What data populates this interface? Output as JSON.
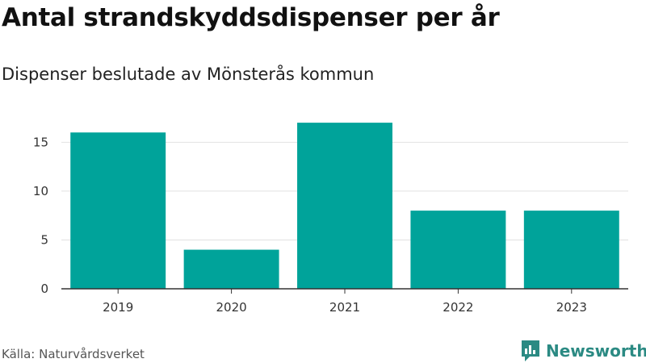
{
  "chart_data": {
    "type": "bar",
    "title": "Antal strandskyddsdispenser per år",
    "subtitle": "Dispenser beslutade av Mönsterås kommun",
    "categories": [
      "2019",
      "2020",
      "2021",
      "2022",
      "2023"
    ],
    "values": [
      16,
      4,
      17,
      8,
      8
    ],
    "xlabel": "",
    "ylabel": "",
    "ylim": [
      0,
      18
    ],
    "yticks": [
      0,
      5,
      10,
      15
    ],
    "grid": true,
    "legend": "none",
    "bar_color": "#00a39a"
  },
  "source": "Källa: Naturvårdsverket",
  "brand": {
    "name": "Newsworthy",
    "icon": "newsworthy-logo-icon",
    "color": "#2b8a83"
  }
}
